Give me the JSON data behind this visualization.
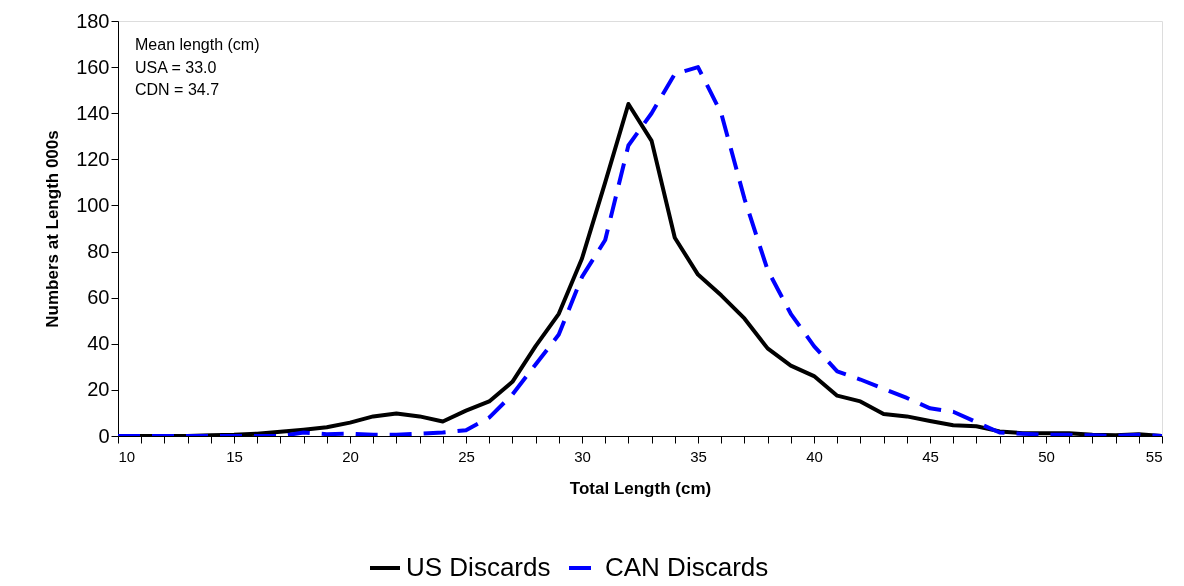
{
  "chart_data": {
    "type": "line",
    "xlabel": "Total Length (cm)",
    "ylabel": "Numbers at Length 000s",
    "x": [
      10,
      11,
      12,
      13,
      14,
      15,
      16,
      17,
      18,
      19,
      20,
      21,
      22,
      23,
      24,
      25,
      26,
      27,
      28,
      29,
      30,
      31,
      32,
      33,
      34,
      35,
      36,
      37,
      38,
      39,
      40,
      41,
      42,
      43,
      44,
      45,
      46,
      47,
      48,
      49,
      50,
      51,
      52,
      53,
      54,
      55
    ],
    "series": [
      {
        "name": "US Discards",
        "color": "#000000",
        "line_style": "solid",
        "values": [
          0,
          0,
          0,
          0,
          0.3,
          0.5,
          1,
          1.8,
          2.7,
          3.8,
          5.8,
          8.5,
          9.8,
          8.5,
          6.3,
          11,
          15,
          23.5,
          39,
          53,
          77,
          110,
          144,
          128,
          86,
          70,
          61,
          51,
          38,
          30.5,
          26,
          17.5,
          15,
          9.5,
          8.5,
          6.5,
          4.7,
          4.2,
          2,
          1.2,
          1.2,
          1.2,
          0.5,
          0.3,
          0.8,
          0
        ]
      },
      {
        "name": "CAN Discards",
        "color": "#0000ff",
        "line_style": "dashed",
        "values": [
          0,
          0,
          0,
          0,
          0,
          0,
          0,
          0,
          1.5,
          0.8,
          1,
          0.5,
          0.5,
          1,
          1.5,
          2.5,
          8,
          18,
          31,
          44,
          69,
          85,
          126,
          140,
          157,
          160,
          140,
          103,
          72,
          53,
          39,
          28,
          24.5,
          20.5,
          16.5,
          12,
          10.5,
          6,
          1.5,
          1,
          0.5,
          0.5,
          0.3,
          0,
          0.5,
          0
        ]
      }
    ],
    "xlim": [
      10,
      55
    ],
    "xticks": [
      10,
      {
        "value": 11,
        "label": null
      },
      {
        "value": 12,
        "label": null
      },
      {
        "value": 13,
        "label": null
      },
      {
        "value": 14,
        "label": null
      },
      15,
      {
        "value": 16,
        "label": null
      },
      {
        "value": 17,
        "label": null
      },
      {
        "value": 18,
        "label": null
      },
      {
        "value": 19,
        "label": null
      },
      20,
      {
        "value": 21,
        "label": null
      },
      {
        "value": 22,
        "label": null
      },
      {
        "value": 23,
        "label": null
      },
      {
        "value": 24,
        "label": null
      },
      25,
      {
        "value": 26,
        "label": null
      },
      {
        "value": 27,
        "label": null
      },
      {
        "value": 28,
        "label": null
      },
      {
        "value": 29,
        "label": null
      },
      30,
      {
        "value": 31,
        "label": null
      },
      {
        "value": 32,
        "label": null
      },
      {
        "value": 33,
        "label": null
      },
      {
        "value": 34,
        "label": null
      },
      35,
      {
        "value": 36,
        "label": null
      },
      {
        "value": 37,
        "label": null
      },
      {
        "value": 38,
        "label": null
      },
      {
        "value": 39,
        "label": null
      },
      40,
      {
        "value": 41,
        "label": null
      },
      {
        "value": 42,
        "label": null
      },
      {
        "value": 43,
        "label": null
      },
      {
        "value": 44,
        "label": null
      },
      45,
      {
        "value": 46,
        "label": null
      },
      {
        "value": 47,
        "label": null
      },
      {
        "value": 48,
        "label": null
      },
      {
        "value": 49,
        "label": null
      },
      50,
      {
        "value": 51,
        "label": null
      },
      {
        "value": 52,
        "label": null
      },
      {
        "value": 53,
        "label": null
      },
      {
        "value": 54,
        "label": null
      },
      55
    ],
    "ylim": [
      0,
      180
    ],
    "yticks": [
      0,
      20,
      40,
      60,
      80,
      100,
      120,
      140,
      160,
      180
    ],
    "grid": false,
    "legend": "bottom",
    "marker": "none",
    "annotations": [
      "Mean length (cm)",
      "USA = 33.0",
      "CDN = 34.7"
    ]
  }
}
